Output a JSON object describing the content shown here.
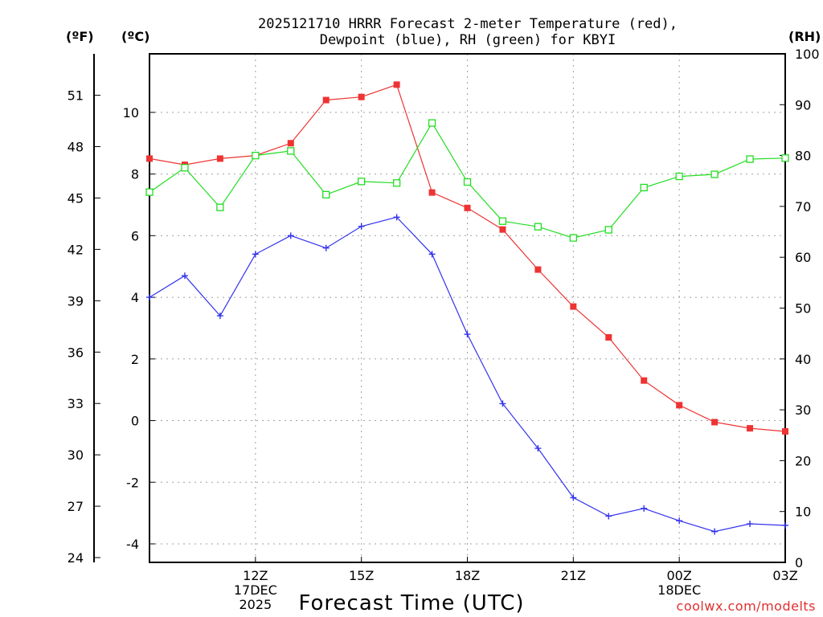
{
  "chart_data": {
    "type": "line",
    "title_line1": "2025121710 HRRR Forecast 2-meter Temperature (red),",
    "title_line2": "Dewpoint (blue), RH (green) for KBYI",
    "units": {
      "fahrenheit": "(ºF)",
      "celsius": "(ºC)",
      "rh": "(RH)"
    },
    "xlabel": "Forecast Time (UTC)",
    "credit": "coolwx.com/modelts",
    "x_hours": [
      9,
      10,
      11,
      12,
      13,
      14,
      15,
      16,
      17,
      18,
      19,
      20,
      21,
      22,
      23,
      24,
      25,
      26,
      27
    ],
    "xlim": [
      9,
      27
    ],
    "x_ticks": [
      {
        "hour": 12,
        "lines": [
          "12Z",
          "17DEC",
          "2025"
        ]
      },
      {
        "hour": 15,
        "lines": [
          "15Z"
        ]
      },
      {
        "hour": 18,
        "lines": [
          "18Z"
        ]
      },
      {
        "hour": 21,
        "lines": [
          "21Z"
        ]
      },
      {
        "hour": 24,
        "lines": [
          "00Z",
          "18DEC"
        ]
      },
      {
        "hour": 27,
        "lines": [
          "03Z"
        ]
      }
    ],
    "celsius_axis": {
      "ylim": [
        -4.6,
        11.9
      ],
      "ticks": [
        "-4",
        "-2",
        "0",
        "2",
        "4",
        "6",
        "8",
        "10"
      ]
    },
    "fahrenheit_axis": {
      "ticks": [
        "24",
        "27",
        "30",
        "33",
        "36",
        "39",
        "42",
        "45",
        "48",
        "51"
      ]
    },
    "rh_axis": {
      "ylim": [
        0,
        100
      ],
      "ticks": [
        "0",
        "10",
        "20",
        "30",
        "40",
        "50",
        "60",
        "70",
        "80",
        "90",
        "100"
      ]
    },
    "series": [
      {
        "name": "2-meter Temperature",
        "axis": "celsius",
        "color": "#ee3333",
        "marker": "filled-square",
        "values": [
          8.5,
          8.3,
          8.5,
          8.6,
          9.0,
          10.4,
          10.5,
          10.9,
          7.4,
          6.9,
          6.2,
          4.9,
          3.7,
          2.7,
          1.3,
          0.5,
          -0.05,
          -0.25,
          -0.35
        ]
      },
      {
        "name": "Dewpoint",
        "axis": "celsius",
        "color": "#3333ee",
        "marker": "plus",
        "values": [
          4.0,
          4.7,
          3.4,
          5.4,
          6.0,
          5.6,
          6.3,
          6.6,
          5.4,
          2.8,
          0.55,
          -0.9,
          -2.5,
          -3.1,
          -2.85,
          -3.25,
          -3.6,
          -3.35,
          -3.4
        ]
      },
      {
        "name": "RH",
        "axis": "rh",
        "color": "#22dd22",
        "marker": "open-square",
        "values": [
          72.8,
          77.6,
          69.8,
          80.0,
          80.9,
          72.3,
          74.9,
          74.6,
          86.4,
          74.8,
          67.1,
          66.0,
          63.8,
          65.4,
          73.7,
          75.9,
          76.3,
          79.3,
          79.5
        ]
      }
    ]
  }
}
